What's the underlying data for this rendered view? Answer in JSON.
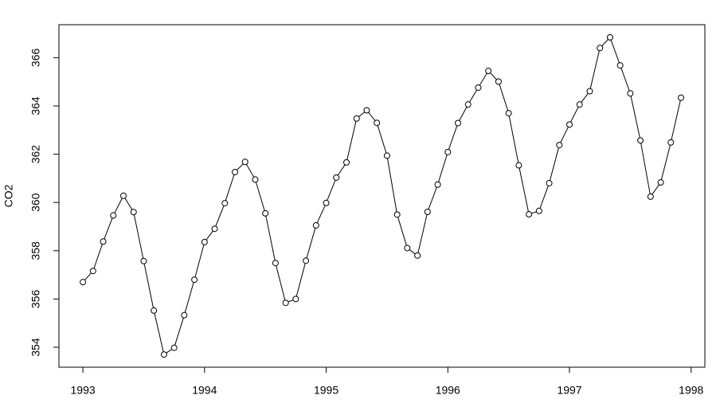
{
  "chart_data": {
    "type": "line",
    "y_label": "CO2",
    "x": [
      1993,
      1993.0833,
      1993.1667,
      1993.25,
      1993.3333,
      1993.4167,
      1993.5,
      1993.5833,
      1993.6667,
      1993.75,
      1993.8333,
      1993.9167,
      1994,
      1994.0833,
      1994.1667,
      1994.25,
      1994.3333,
      1994.4167,
      1994.5,
      1994.5833,
      1994.6667,
      1994.75,
      1994.8333,
      1994.9167,
      1995,
      1995.0833,
      1995.1667,
      1995.25,
      1995.3333,
      1995.4167,
      1995.5,
      1995.5833,
      1995.6667,
      1995.75,
      1995.8333,
      1995.9167,
      1996,
      1996.0833,
      1996.1667,
      1996.25,
      1996.3333,
      1996.4167,
      1996.5,
      1996.5833,
      1996.6667,
      1996.75,
      1996.8333,
      1996.9167,
      1997,
      1997.0833,
      1997.1667,
      1997.25,
      1997.3333,
      1997.4167,
      1997.5,
      1997.5833,
      1997.6667,
      1997.75,
      1997.8333,
      1997.9167
    ],
    "series": [
      {
        "color": "#000000",
        "values": [
          356.7,
          357.16,
          358.38,
          359.46,
          360.28,
          359.6,
          357.57,
          355.52,
          353.7,
          353.98,
          355.33,
          356.8,
          358.36,
          358.91,
          359.97,
          361.26,
          361.68,
          360.95,
          359.55,
          357.49,
          355.84,
          356.0,
          357.59,
          359.05,
          359.98,
          361.03,
          361.66,
          363.48,
          363.82,
          363.3,
          361.94,
          359.5,
          358.11,
          357.8,
          359.61,
          360.74,
          362.09,
          363.29,
          364.06,
          364.76,
          365.45,
          365.01,
          363.7,
          361.54,
          359.51,
          359.65,
          360.8,
          362.38,
          363.23,
          364.06,
          364.61,
          366.4,
          366.84,
          365.68,
          364.52,
          362.57,
          360.24,
          360.83,
          362.49,
          364.34
        ]
      }
    ],
    "xlim": [
      1992.803,
      1998.113
    ],
    "xticks": [
      1993,
      1994,
      1995,
      1996,
      1997,
      1998
    ],
    "ylim": [
      353.174,
      367.366
    ],
    "yticks": [
      354,
      356,
      358,
      360,
      362,
      364,
      366
    ]
  }
}
